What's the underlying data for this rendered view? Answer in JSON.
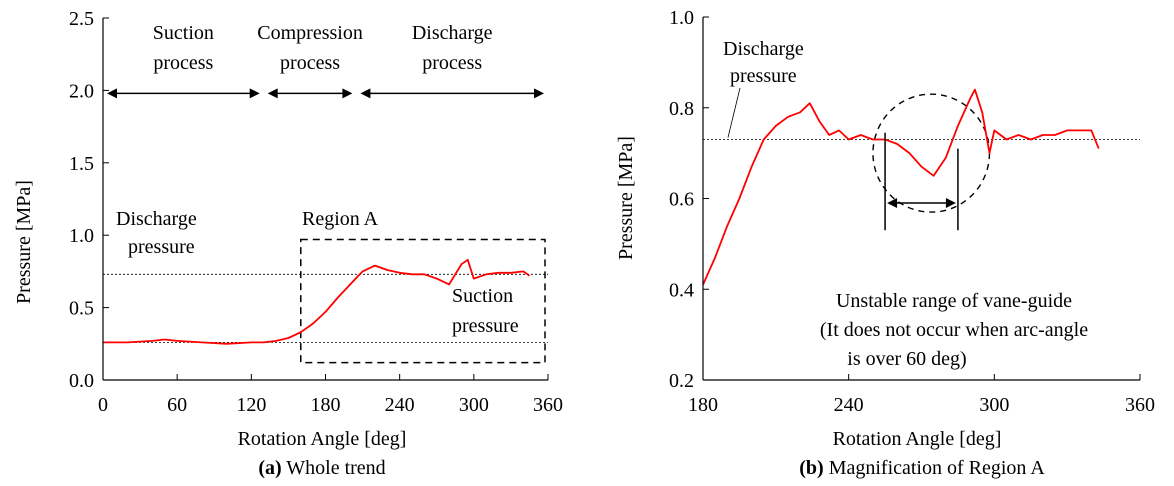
{
  "chart_data": [
    {
      "type": "line",
      "caption_bold": "(a)",
      "caption_text": "Whole trend",
      "xlabel": "Rotation Angle [deg]",
      "ylabel": "Pressure [MPa]",
      "xlim": [
        0,
        360
      ],
      "ylim": [
        0,
        2.5
      ],
      "xticks": [
        "0",
        "60",
        "120",
        "180",
        "240",
        "300",
        "360"
      ],
      "yticks": [
        "0.0",
        "0.5",
        "1.0",
        "1.5",
        "2.0",
        "2.5"
      ],
      "grid": false,
      "series_color": "#ff0000",
      "series": [
        {
          "x": [
            0,
            20,
            40,
            50,
            60,
            80,
            100,
            120,
            130,
            140,
            150,
            160,
            170,
            180,
            190,
            200,
            210,
            220,
            230,
            240,
            250,
            260,
            270,
            280,
            290,
            295,
            300,
            310,
            320,
            330,
            340,
            345
          ],
          "y": [
            0.26,
            0.26,
            0.27,
            0.28,
            0.27,
            0.26,
            0.25,
            0.26,
            0.26,
            0.27,
            0.29,
            0.33,
            0.39,
            0.47,
            0.57,
            0.66,
            0.75,
            0.79,
            0.76,
            0.74,
            0.73,
            0.73,
            0.7,
            0.66,
            0.8,
            0.83,
            0.7,
            0.73,
            0.74,
            0.74,
            0.75,
            0.72
          ]
        }
      ],
      "reference_lines": [
        {
          "y": 0.73,
          "label": "Discharge pressure"
        },
        {
          "y": 0.26,
          "label": "Suction pressure"
        }
      ],
      "process_arrows": [
        {
          "from": 0,
          "to": 130,
          "label_line1": "Suction",
          "label_line2": "process"
        },
        {
          "from": 130,
          "to": 205,
          "label_line1": "Compression",
          "label_line2": "process"
        },
        {
          "from": 205,
          "to": 360,
          "label_line1": "Discharge",
          "label_line2": "process"
        }
      ],
      "arrow_y": 2.0,
      "region": {
        "label": "Region A",
        "x0": 160,
        "x1": 360,
        "y0": 0.12,
        "y1": 0.97
      }
    },
    {
      "type": "line",
      "caption_bold": "(b)",
      "caption_text": "Magnification of Region A",
      "xlabel": "Rotation Angle [deg]",
      "ylabel": "Pressure [MPa]",
      "xlim": [
        180,
        360
      ],
      "ylim": [
        0.2,
        1.0
      ],
      "xticks": [
        "180",
        "240",
        "300",
        "360"
      ],
      "yticks": [
        "0.2",
        "0.4",
        "0.6",
        "0.8",
        "1.0"
      ],
      "grid": false,
      "series_color": "#ff0000",
      "series": [
        {
          "x": [
            180,
            185,
            190,
            195,
            200,
            205,
            210,
            215,
            220,
            224,
            228,
            232,
            236,
            240,
            245,
            250,
            255,
            260,
            265,
            270,
            275,
            280,
            285,
            290,
            292,
            295,
            298,
            300,
            305,
            310,
            315,
            320,
            325,
            330,
            335,
            340,
            343
          ],
          "y": [
            0.41,
            0.47,
            0.54,
            0.6,
            0.67,
            0.73,
            0.76,
            0.78,
            0.79,
            0.81,
            0.77,
            0.74,
            0.75,
            0.73,
            0.74,
            0.73,
            0.73,
            0.72,
            0.7,
            0.67,
            0.65,
            0.69,
            0.76,
            0.82,
            0.84,
            0.79,
            0.7,
            0.75,
            0.73,
            0.74,
            0.73,
            0.74,
            0.74,
            0.75,
            0.75,
            0.75,
            0.71
          ]
        }
      ],
      "reference_lines": [
        {
          "y": 0.73,
          "label": "Discharge pressure"
        }
      ],
      "circle": {
        "cx": 274,
        "cy": 0.7,
        "rx": 24,
        "ry": 0.13
      },
      "unstable_range": {
        "from": 255,
        "to": 285,
        "arrow_y": 0.59
      },
      "annotation": [
        "Unstable range of vane-guide",
        "(It does not occur when arc-angle",
        "is over 60 deg)"
      ]
    }
  ]
}
